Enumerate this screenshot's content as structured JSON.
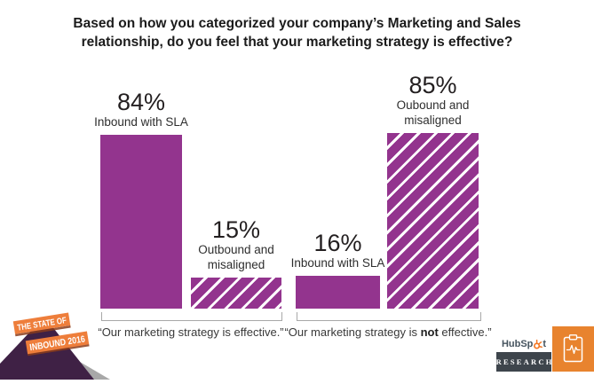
{
  "title": {
    "line1": "Based on how you categorized your company’s Marketing and Sales",
    "line2": "relationship, do you feel that your marketing strategy is effective?"
  },
  "chart_data": {
    "type": "bar",
    "title": "Based on how you categorized your company’s Marketing and Sales relationship, do you feel that your marketing strategy is effective?",
    "unit": "percent",
    "ylim": [
      0,
      100
    ],
    "grid": false,
    "legend": "none",
    "groups": [
      {
        "axis_label": "“Our marketing strategy is effective.”",
        "bars": [
          {
            "name": "Inbound with SLA",
            "value": 84,
            "value_label": "84%",
            "pattern": "solid",
            "label_line1": "Inbound with SLA"
          },
          {
            "name": "Outbound and misaligned",
            "value": 15,
            "value_label": "15%",
            "pattern": "diagonal-hatch",
            "label_line1": "Outbound and",
            "label_line2": "misaligned"
          }
        ]
      },
      {
        "axis_label": "“Our marketing strategy is not effective.”",
        "axis_label_parts": {
          "prefix": "“Our marketing strategy is ",
          "bold": "not",
          "suffix": " effective.”"
        },
        "bars": [
          {
            "name": "Inbound with SLA",
            "value": 16,
            "value_label": "16%",
            "pattern": "solid",
            "label_line1": "Inbound with SLA"
          },
          {
            "name": "Oubound and misaligned",
            "value": 85,
            "value_label": "85%",
            "pattern": "diagonal-hatch",
            "label_line1": "Oubound and",
            "label_line2": "misaligned"
          }
        ]
      }
    ],
    "colors": {
      "bar_solid": "#93348e",
      "hatch_stripe": "#ffffff",
      "bracket": "#a8a8a8"
    }
  },
  "branding": {
    "inbound_badge": {
      "line1": "THE STATE OF",
      "line2": "INBOUND 2016",
      "banner_color": "#ee7e3b",
      "diamond_color": "#3f2145"
    },
    "hubspot": {
      "wordmark_prefix": "HubSp",
      "wordmark_suffix": "t",
      "research_label": "RESEARCH",
      "research_bg": "#3e454c",
      "tile_color": "#e8832e",
      "sprocket_color": "#f57722"
    }
  }
}
